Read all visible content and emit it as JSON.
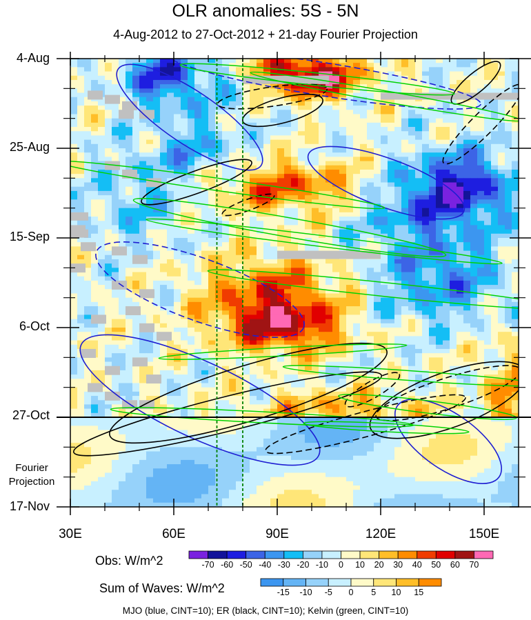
{
  "chart_data": {
    "type": "heatmap",
    "title": "OLR anomalies: 5S - 5N",
    "subtitle": "4-Aug-2012 to 27-Oct-2012 + 21-day Fourier Projection",
    "x_ticks": [
      "30E",
      "60E",
      "90E",
      "120E",
      "150E"
    ],
    "x_tick_values": [
      30,
      60,
      90,
      120,
      150
    ],
    "xlim": [
      30,
      160
    ],
    "y_ticks": [
      "4-Aug",
      "25-Aug",
      "15-Sep",
      "6-Oct",
      "27-Oct",
      "17-Nov"
    ],
    "y_tick_days": [
      0,
      21,
      42,
      63,
      84,
      105
    ],
    "ylim_days": [
      0,
      105
    ],
    "projection_start_day": 84,
    "projection_label_line1": "Fourier",
    "projection_label_line2": "Projection",
    "reference_longitudes_dashed_green": [
      72.5,
      80
    ],
    "obs_colorbar": {
      "title": "Obs: W/m^2",
      "levels": [
        "-70",
        "-60",
        "-50",
        "-40",
        "-30",
        "-20",
        "-10",
        "0",
        "10",
        "20",
        "30",
        "40",
        "50",
        "60",
        "70"
      ],
      "colors": [
        "#7a22e0",
        "#14149a",
        "#1e1ee0",
        "#3c64e6",
        "#3c96f0",
        "#14bef5",
        "#96d2fa",
        "#c8f0ff",
        "#fffac8",
        "#ffe678",
        "#ffbe28",
        "#ff8c00",
        "#f03c00",
        "#e10000",
        "#a01414",
        "#ff69b4"
      ]
    },
    "waves_colorbar": {
      "title": "Sum of Waves: W/m^2",
      "levels": [
        "-15",
        "-10",
        "-5",
        "0",
        "5",
        "10",
        "15"
      ],
      "colors": [
        "#3c96f0",
        "#64b4f5",
        "#96d2fa",
        "#c8f0ff",
        "#fffac8",
        "#ffe678",
        "#ffbe28",
        "#ff8c00"
      ]
    },
    "footnote": "MJO (blue, CINT=10); ER (black, CINT=10); Kelvin (green, CINT=10)",
    "contour_series": [
      {
        "name": "MJO",
        "color": "#1e1ed2",
        "interval": 10
      },
      {
        "name": "ER",
        "color": "#000000",
        "interval": 10
      },
      {
        "name": "Kelvin",
        "color": "#00d200",
        "interval": 10
      }
    ]
  }
}
